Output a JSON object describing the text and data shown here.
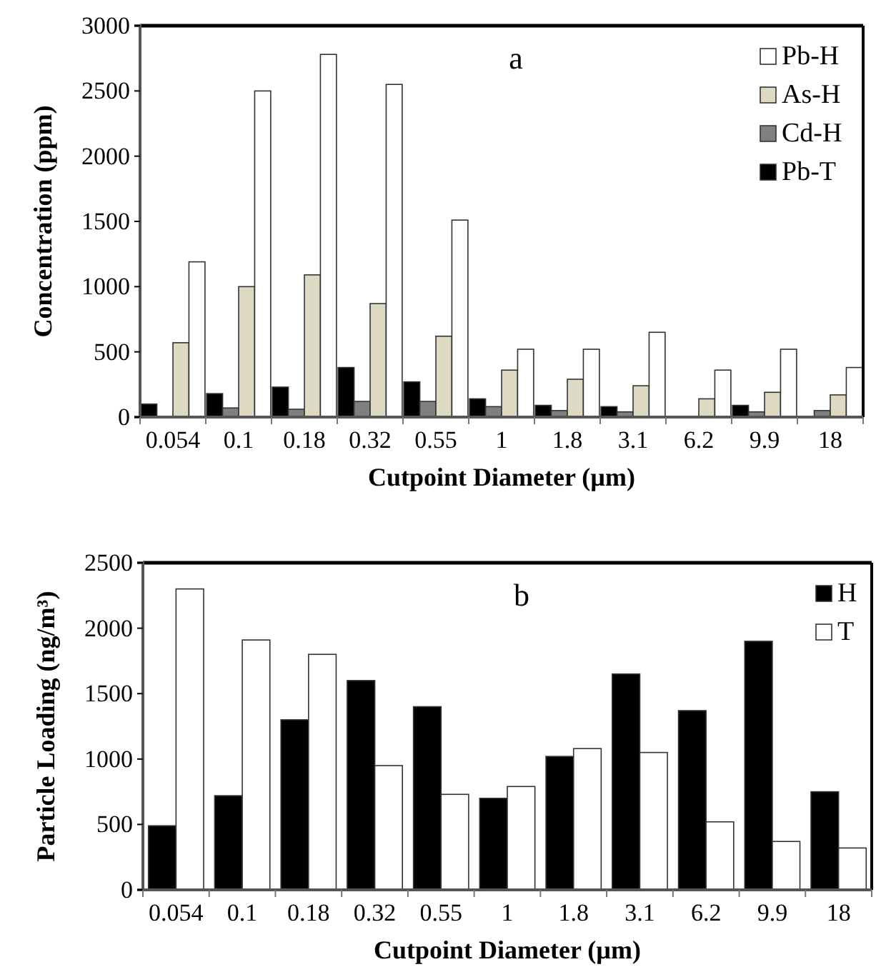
{
  "chart_data": [
    {
      "type": "bar",
      "title": "a",
      "xlabel": "Cutpoint Diameter (µm)",
      "ylabel": "Concentration (ppm)",
      "categories": [
        "0.054",
        "0.1",
        "0.18",
        "0.32",
        "0.55",
        "1",
        "1.8",
        "3.1",
        "6.2",
        "9.9",
        "18"
      ],
      "series": [
        {
          "name": "Pb-T",
          "color": "#000000",
          "values": [
            100,
            180,
            230,
            380,
            270,
            140,
            90,
            80,
            null,
            90,
            null
          ]
        },
        {
          "name": "Cd-H",
          "color": "#808080",
          "values": [
            null,
            70,
            60,
            120,
            120,
            80,
            50,
            40,
            null,
            40,
            50
          ]
        },
        {
          "name": "As-H",
          "color": "#ddd9c3",
          "values": [
            570,
            1000,
            1090,
            870,
            620,
            360,
            290,
            240,
            140,
            190,
            170
          ]
        },
        {
          "name": "Pb-H",
          "color": "#ffffff",
          "values": [
            1190,
            2500,
            2780,
            2550,
            1510,
            520,
            520,
            650,
            360,
            520,
            380
          ]
        }
      ],
      "ylim": [
        0,
        3000
      ],
      "yticks": [
        0,
        500,
        1000,
        1500,
        2000,
        2500,
        3000
      ],
      "grid": false,
      "legend": "top right"
    },
    {
      "type": "bar",
      "title": "b",
      "xlabel": "Cutpoint Diameter (µm)",
      "ylabel": "Particle Loading (ng/m³)",
      "categories": [
        "0.054",
        "0.1",
        "0.18",
        "0.32",
        "0.55",
        "1",
        "1.8",
        "3.1",
        "6.2",
        "9.9",
        "18"
      ],
      "series": [
        {
          "name": "H",
          "color": "#000000",
          "values": [
            490,
            720,
            1300,
            1600,
            1400,
            700,
            1020,
            1650,
            1370,
            1900,
            750
          ]
        },
        {
          "name": "T",
          "color": "#ffffff",
          "values": [
            2300,
            1910,
            1800,
            950,
            730,
            790,
            1080,
            1050,
            520,
            370,
            320
          ]
        }
      ],
      "ylim": [
        0,
        2500
      ],
      "yticks": [
        0,
        500,
        1000,
        1500,
        2000,
        2500
      ],
      "grid": false,
      "legend": "top right"
    }
  ]
}
